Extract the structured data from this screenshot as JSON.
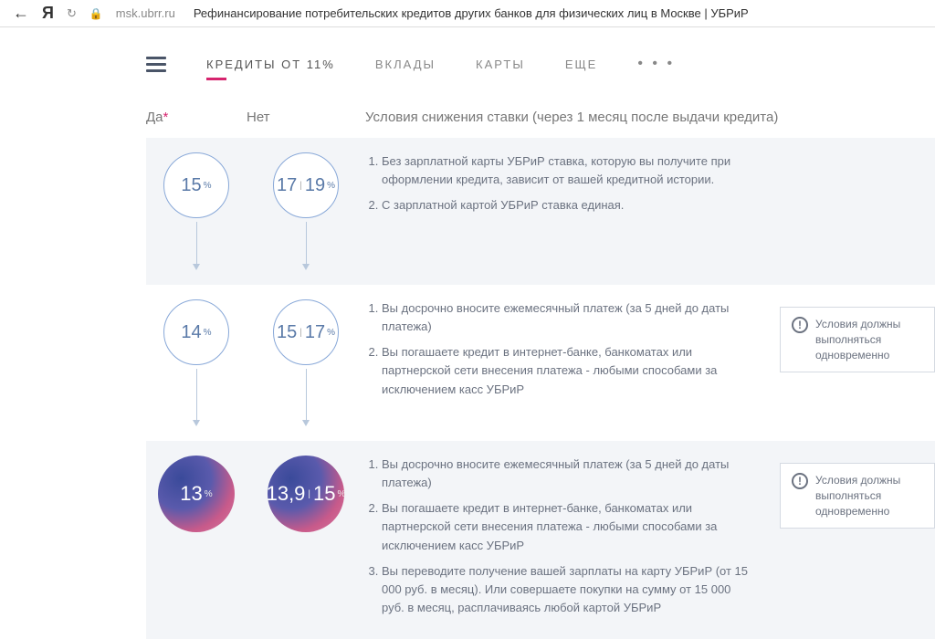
{
  "browser": {
    "back": "←",
    "y_logo": "Я",
    "refresh": "↻",
    "lock": "🔒",
    "url": "msk.ubrr.ru",
    "title": "Рефинансирование потребительских кредитов других банков для физических лиц в Москве | УБРиР"
  },
  "nav": {
    "items": [
      {
        "label": "КРЕДИТЫ ОТ 11%",
        "active": true
      },
      {
        "label": "ВКЛАДЫ",
        "active": false
      },
      {
        "label": "КАРТЫ",
        "active": false
      },
      {
        "label": "ЕЩЕ",
        "active": false
      }
    ],
    "more_dots": "• • •"
  },
  "table": {
    "headers": {
      "yes": "Да",
      "req_mark": "*",
      "no": "Нет",
      "cond": "Условия снижения ставки (через 1 месяц после выдачи кредита)"
    },
    "rows": [
      {
        "yes_rate": "15",
        "yes_unit": "%",
        "no_rate1": "17",
        "no_rate2": "19",
        "no_unit": "%",
        "cond": [
          "Без зарплатной карты УБРиР ставка, которую вы получите при оформлении кредита, зависит от вашей кредитной истории.",
          "С зарплатной картой УБРиР ставка единая."
        ],
        "shade": true,
        "arrow_h": 46
      },
      {
        "yes_rate": "14",
        "yes_unit": "%",
        "no_rate1": "15",
        "no_rate2": "17",
        "no_unit": "%",
        "cond": [
          "Вы досрочно вносите ежемесячный платеж (за 5 дней до даты платежа)",
          "Вы погашаете кредит в интернет-банке, банкоматах или партнерской сети внесения платежа - любыми способами за исключением касс УБРиР"
        ],
        "shade": false,
        "side": "Условия должны выполняться одновременно",
        "arrow_h": 56
      },
      {
        "yes_rate": "13",
        "yes_unit": "%",
        "no_rate1": "13,9",
        "no_rate2": "15",
        "no_unit": "%",
        "cond": [
          "Вы досрочно вносите ежемесячный платеж (за 5 дней до даты платежа)",
          "Вы погашаете кредит в интернет-банке, банкоматах или партнерской сети внесения платежа - любыми способами за исключением касс УБРиР",
          "Вы переводите получение вашей зарплаты на карту УБРиР (от 15 000 руб. в месяц). Или совершаете покупки на сумму от 15 000 руб. в месяц, расплачиваясь любой картой УБРиР"
        ],
        "shade": true,
        "filled": true,
        "side": "Условия должны выполняться одновременно"
      }
    ]
  },
  "styling": {
    "circle_border_color": "#88a8d8",
    "circle_text_color": "#5a7aa8",
    "circle_size": 72,
    "circle_filled_size": 84,
    "filled_gradient": [
      "#3a4a9a",
      "#5a5aac",
      "#c85a8a",
      "#d878a0"
    ],
    "accent_color": "#d6246e",
    "shade_bg": "#f3f5f8",
    "arrow_color": "#b8c8dc",
    "font_body": 13,
    "font_header": 15
  }
}
